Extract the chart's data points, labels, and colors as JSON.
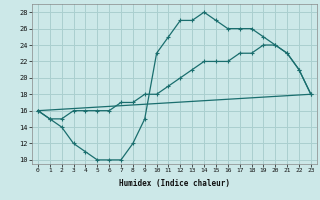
{
  "xlabel": "Humidex (Indice chaleur)",
  "background_color": "#cce8e8",
  "grid_color": "#aacfcf",
  "line_color": "#1a6e6e",
  "xlim": [
    -0.5,
    23.5
  ],
  "ylim": [
    9.5,
    29
  ],
  "xticks": [
    0,
    1,
    2,
    3,
    4,
    5,
    6,
    7,
    8,
    9,
    10,
    11,
    12,
    13,
    14,
    15,
    16,
    17,
    18,
    19,
    20,
    21,
    22,
    23
  ],
  "yticks": [
    10,
    12,
    14,
    16,
    18,
    20,
    22,
    24,
    26,
    28
  ],
  "line1_x": [
    0,
    1,
    2,
    3,
    4,
    5,
    6,
    7,
    8,
    9,
    10,
    11,
    12,
    13,
    14,
    15,
    16,
    17,
    18,
    19,
    20,
    21,
    22,
    23
  ],
  "line1_y": [
    16,
    15,
    14,
    12,
    11,
    10,
    10,
    10,
    12,
    15,
    23,
    25,
    27,
    27,
    28,
    27,
    26,
    26,
    26,
    25,
    24,
    23,
    21,
    18
  ],
  "line2_x": [
    0,
    1,
    2,
    3,
    4,
    5,
    6,
    7,
    8,
    9,
    10,
    11,
    12,
    13,
    14,
    15,
    16,
    17,
    18,
    19,
    20,
    21,
    22,
    23
  ],
  "line2_y": [
    16,
    15,
    15,
    16,
    16,
    16,
    16,
    17,
    17,
    18,
    18,
    19,
    20,
    21,
    22,
    22,
    22,
    23,
    23,
    24,
    24,
    23,
    21,
    18
  ],
  "line3_x": [
    0,
    23
  ],
  "line3_y": [
    16,
    18
  ]
}
